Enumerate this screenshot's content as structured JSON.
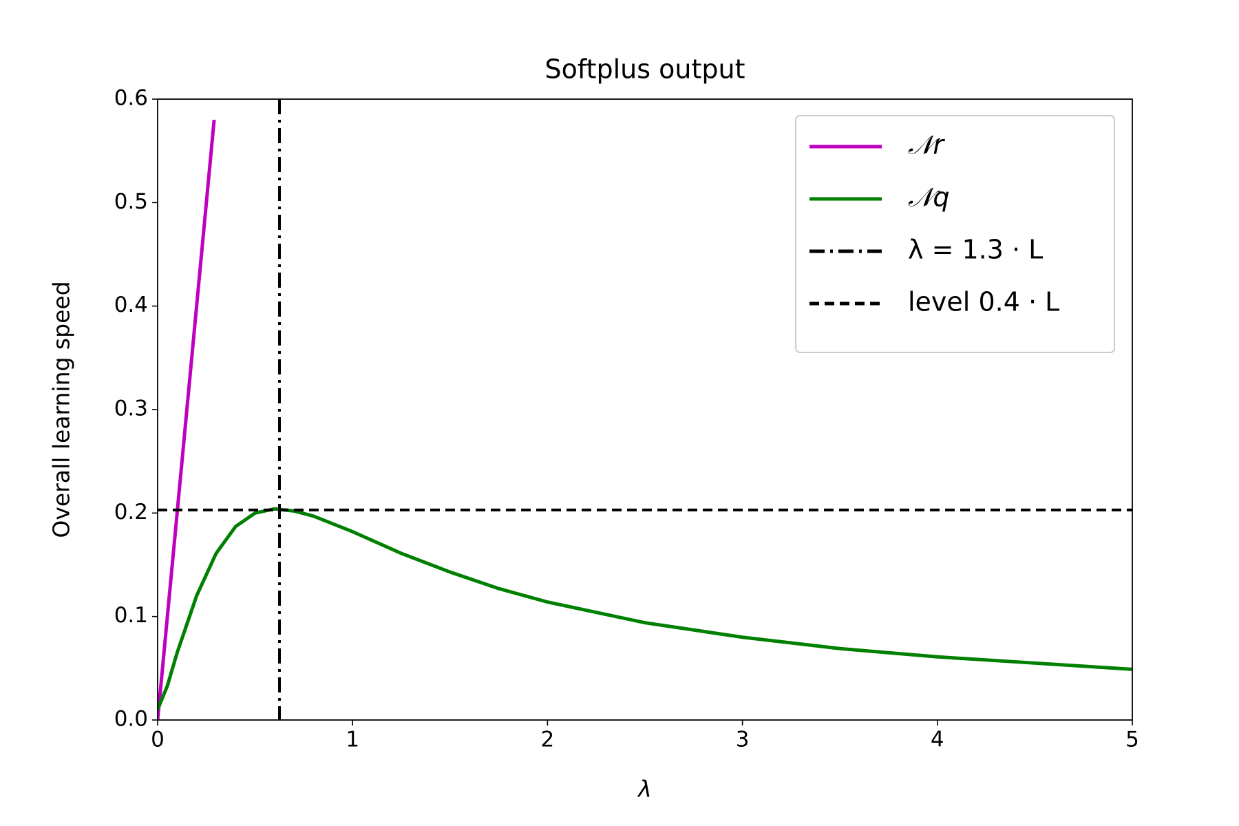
{
  "chart_data": {
    "type": "line",
    "title": "Softplus output",
    "x_label": "λ",
    "y_label": "Overall learning speed",
    "xlim": [
      0,
      5
    ],
    "ylim": [
      0,
      0.6
    ],
    "xticks": [
      0,
      1,
      2,
      3,
      4,
      5
    ],
    "yticks": [
      {
        "value": 0,
        "label": "0.0"
      },
      0.1,
      0.2,
      0.3,
      0.4,
      0.5,
      0.6
    ],
    "legend": "upper right",
    "series": [
      {
        "name": "𝒩r",
        "color": "#bf00bf",
        "x": [
          0,
          0.29
        ],
        "values": [
          0,
          0.58
        ]
      },
      {
        "name": "𝒩q",
        "color": "#008000",
        "x": [
          0,
          0.05,
          0.1,
          0.2,
          0.3,
          0.4,
          0.5,
          0.6,
          0.7,
          0.8,
          1,
          1.25,
          1.5,
          1.75,
          2,
          2.5,
          3,
          3.5,
          4,
          4.5,
          5
        ],
        "values": [
          0.01,
          0.033,
          0.065,
          0.12,
          0.161,
          0.187,
          0.2,
          0.204,
          0.202,
          0.197,
          0.182,
          0.161,
          0.143,
          0.127,
          0.114,
          0.094,
          0.08,
          0.069,
          0.061,
          0.055,
          0.049
        ]
      }
    ],
    "reference_lines": [
      {
        "name": "λ = 1.3 · L",
        "orientation": "vertical",
        "value": 0.625,
        "style": "dashdot",
        "color": "#000000"
      },
      {
        "name": "level 0.4 · L",
        "orientation": "horizontal",
        "value": 0.203,
        "style": "dashed",
        "color": "#000000"
      }
    ]
  }
}
